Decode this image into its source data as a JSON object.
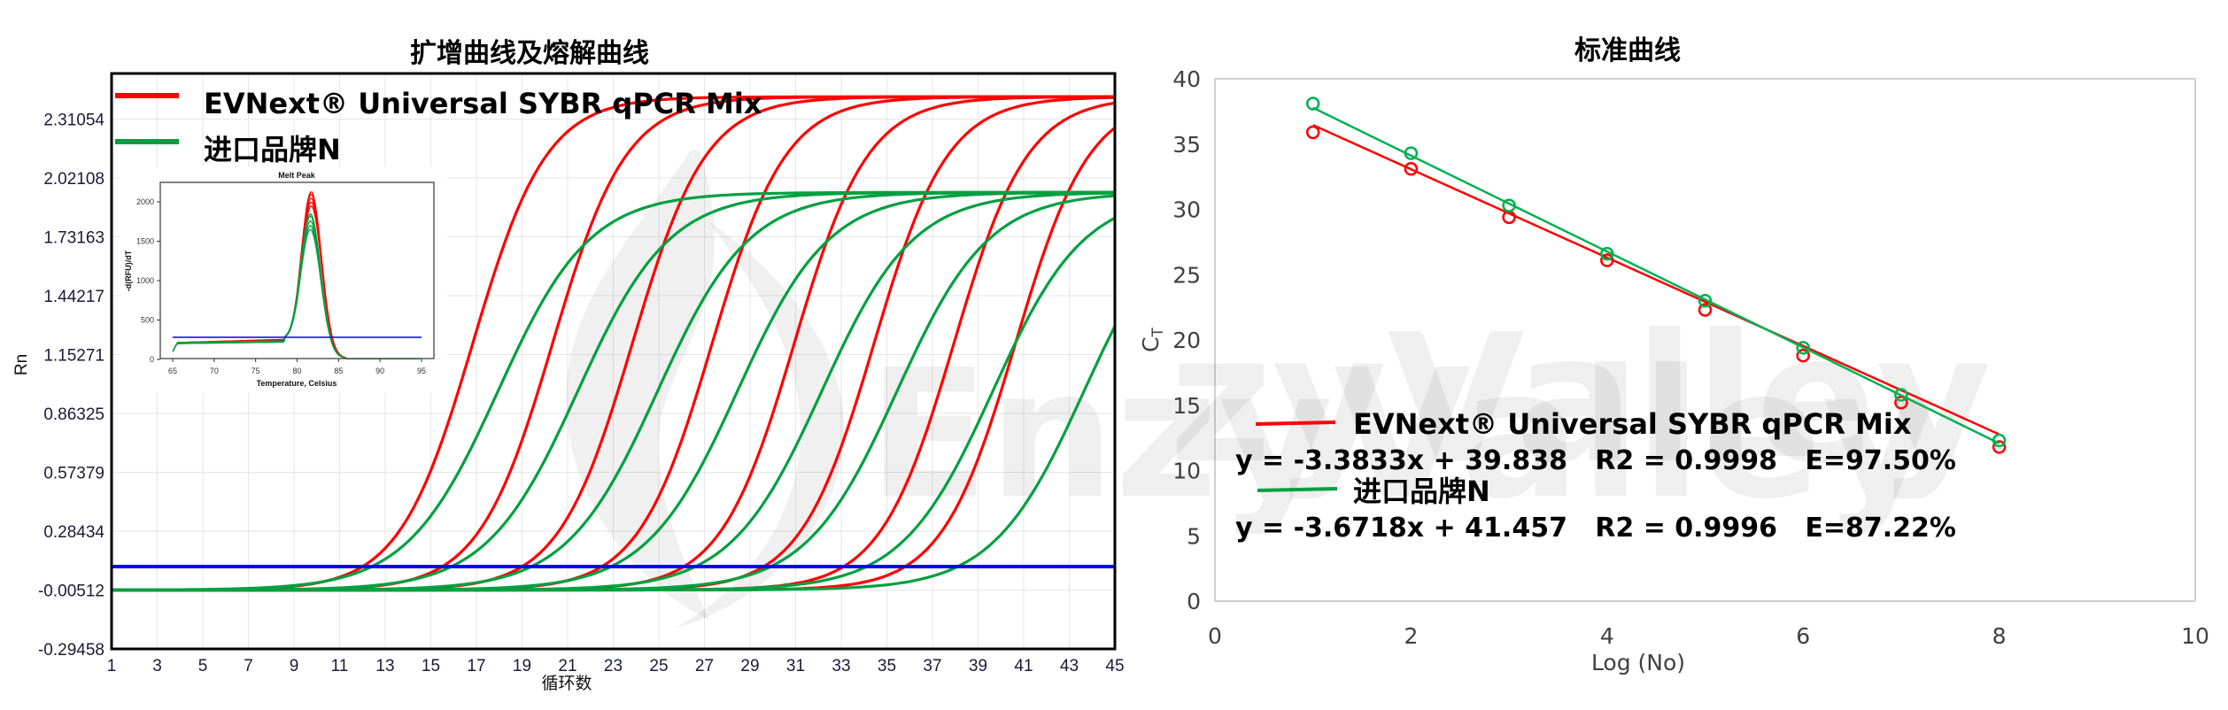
{
  "left_chart": {
    "title": "扩增曲线及熔解曲线",
    "xlabel": "循环数",
    "ylabel": "Rn",
    "xticks": [
      "1",
      "3",
      "5",
      "7",
      "9",
      "11",
      "13",
      "15",
      "17",
      "19",
      "21",
      "23",
      "25",
      "27",
      "29",
      "31",
      "33",
      "35",
      "37",
      "39",
      "41",
      "43",
      "45"
    ],
    "yticks": [
      "-0.29458",
      "-0.00512",
      "0.28434",
      "0.57379",
      "0.86325",
      "1.15271",
      "1.44217",
      "1.73163",
      "2.02108",
      "2.31054"
    ],
    "legend": [
      {
        "label": "EVNext® Universal SYBR qPCR Mix",
        "color": "#ff0000"
      },
      {
        "label": "进口品牌N",
        "color": "#00a040"
      }
    ],
    "threshold_color": "#0000ff",
    "inset": {
      "title": "Melt Peak",
      "xlabel": "Temperature, Celsius",
      "ylabel": "-d(RFU)/dT",
      "xticks": [
        "65",
        "70",
        "75",
        "80",
        "85",
        "90",
        "95"
      ],
      "yticks": [
        "0",
        "500",
        "1000",
        "1500",
        "2000"
      ]
    }
  },
  "right_chart": {
    "title": "标准曲线",
    "xlabel": "Log (No)",
    "ylabel": "CT",
    "xticks": [
      "0",
      "2",
      "4",
      "6",
      "8",
      "10"
    ],
    "yticks": [
      "0",
      "5",
      "10",
      "15",
      "20",
      "25",
      "30",
      "35",
      "40"
    ],
    "legend": [
      {
        "label": "EVNext® Universal SYBR qPCR Mix",
        "color": "#ff0000",
        "equation": "y = -3.3833x + 39.838   R2 = 0.9998   E=97.50%"
      },
      {
        "label": "进口品牌N",
        "color": "#00b050",
        "equation": "y = -3.6718x + 41.457   R2 = 0.9996   E=87.22%"
      }
    ]
  },
  "watermark": "EnzyValley",
  "chart_data": [
    {
      "type": "line",
      "title": "扩增曲线及熔解曲线",
      "xlabel": "循环数",
      "ylabel": "Rn",
      "xlim": [
        1,
        45
      ],
      "ylim": [
        -0.29458,
        2.5
      ],
      "grid": true,
      "legend_position": "top-left",
      "threshold": 0.11,
      "series": [
        {
          "name": "EVNext® Universal SYBR qPCR Mix",
          "color": "#ff0000",
          "plateau": 2.42,
          "ct_values": [
            12.0,
            15.5,
            19.0,
            22.5,
            26.1,
            29.6,
            33.1,
            35.8
          ]
        },
        {
          "name": "进口品牌N",
          "color": "#00a040",
          "plateau": 1.95,
          "ct_values": [
            12.4,
            15.9,
            19.4,
            22.9,
            26.6,
            29.9,
            34.1,
            38.1
          ]
        }
      ],
      "inset": {
        "type": "line",
        "title": "Melt Peak",
        "xlabel": "Temperature, Celsius",
        "ylabel": "-d(RFU)/dT",
        "xlim": [
          65,
          95
        ],
        "ylim": [
          0,
          2300
        ],
        "threshold": 280,
        "series": [
          {
            "name": "EVNext® Universal SYBR qPCR Mix",
            "color": "#ff0000",
            "peak_temp": 81.7,
            "peak_values": [
              1950,
              2000,
              2050,
              2100,
              2130
            ]
          },
          {
            "name": "进口品牌N",
            "color": "#00a040",
            "peak_temp": 81.6,
            "peak_values": [
              1650,
              1700,
              1760,
              1820,
              1850
            ]
          }
        ]
      }
    },
    {
      "type": "scatter",
      "title": "标准曲线",
      "xlabel": "Log (No)",
      "ylabel": "CT",
      "xlim": [
        0,
        10
      ],
      "ylim": [
        0,
        40
      ],
      "grid": false,
      "legend_position": "inside-bottom-left",
      "x": [
        1,
        2,
        3,
        4,
        5,
        6,
        7,
        8
      ],
      "series": [
        {
          "name": "EVNext® Universal SYBR qPCR Mix",
          "color": "#ff0000",
          "values": [
            35.9,
            33.1,
            29.4,
            26.1,
            22.3,
            18.8,
            15.2,
            11.8
          ],
          "fit": {
            "slope": -3.3833,
            "intercept": 39.838,
            "r2": 0.9998,
            "efficiency": "97.50%"
          }
        },
        {
          "name": "进口品牌N",
          "color": "#00b050",
          "values": [
            38.1,
            34.3,
            30.3,
            26.6,
            23.0,
            19.4,
            15.8,
            12.3
          ],
          "fit": {
            "slope": -3.6718,
            "intercept": 41.457,
            "r2": 0.9996,
            "efficiency": "87.22%"
          }
        }
      ]
    }
  ]
}
